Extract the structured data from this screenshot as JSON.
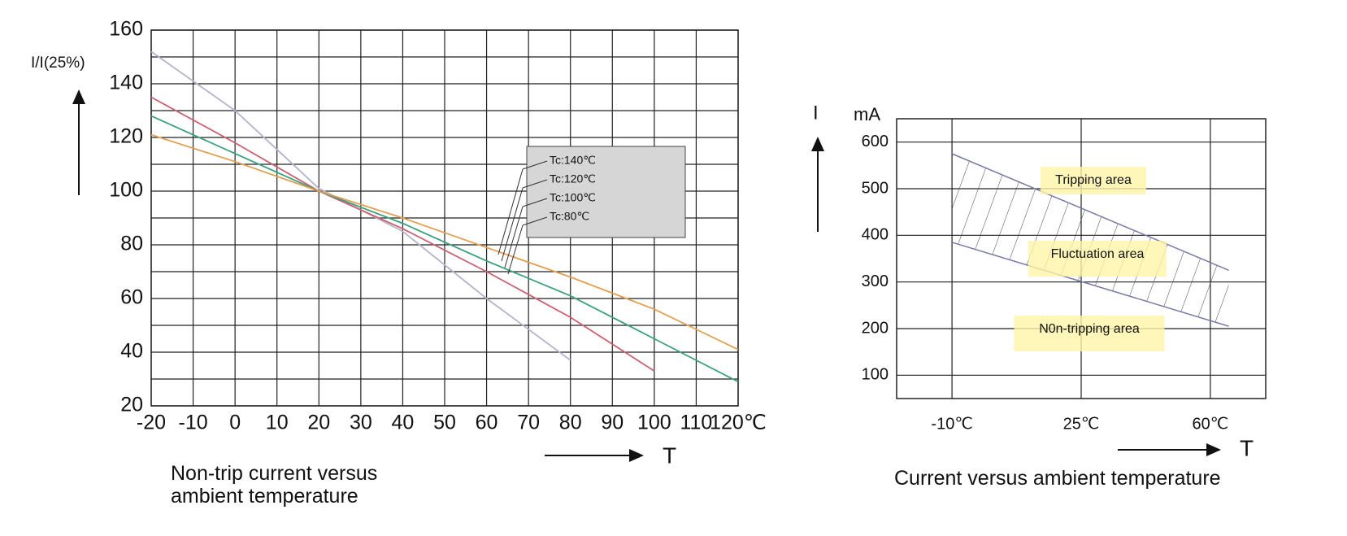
{
  "chart_data": [
    {
      "type": "line",
      "title": "Non-trip current versus ambient temperature",
      "y_label": "I/I(25%)",
      "x_label": "T",
      "xlim": [
        -20,
        120
      ],
      "ylim": [
        20,
        160
      ],
      "xticks": [
        -20,
        -10,
        0,
        10,
        20,
        30,
        40,
        50,
        60,
        70,
        80,
        90,
        100,
        110,
        {
          "value": 120,
          "label": "120℃"
        }
      ],
      "yticks": [
        20,
        40,
        60,
        80,
        100,
        120,
        140,
        160
      ],
      "y_minor_grid": [
        30,
        50,
        70,
        90,
        110,
        130,
        150
      ],
      "grid": true,
      "series": [
        {
          "name": "Tc:140℃",
          "color": "#b4b4cc",
          "x": [
            -20,
            0,
            20,
            40,
            60,
            80
          ],
          "values": [
            152,
            130,
            101,
            85,
            60,
            37
          ]
        },
        {
          "name": "Tc:120℃",
          "color": "#cc6070",
          "x": [
            -20,
            0,
            20,
            40,
            60,
            80,
            100
          ],
          "values": [
            135,
            118,
            100,
            86,
            70,
            53,
            33
          ]
        },
        {
          "name": "Tc:100℃",
          "color": "#3aa080",
          "x": [
            -20,
            0,
            20,
            40,
            60,
            80,
            100,
            120
          ],
          "values": [
            128,
            114,
            100,
            88,
            74,
            61,
            45,
            29
          ]
        },
        {
          "name": "Tc:80℃",
          "color": "#e0a050",
          "x": [
            -20,
            0,
            20,
            40,
            60,
            80,
            100,
            120
          ],
          "values": [
            121,
            111,
            100,
            90,
            79,
            68,
            56,
            41
          ]
        }
      ]
    },
    {
      "type": "band",
      "title": "Current versus ambient temperature",
      "y_label": "I",
      "y_unit": "mA",
      "x_label": "T",
      "xlim": [
        -25,
        75
      ],
      "ylim": [
        50,
        650
      ],
      "xticks": [
        {
          "value": -10,
          "label": "-10℃"
        },
        {
          "value": 25,
          "label": "25℃"
        },
        {
          "value": 60,
          "label": "60℃"
        }
      ],
      "yticks": [
        100,
        200,
        300,
        400,
        500,
        600
      ],
      "grid": true,
      "x": [
        -10,
        65
      ],
      "upper": [
        575,
        325
      ],
      "lower": [
        385,
        205
      ],
      "areas": [
        "Tripping area",
        "Fluctuation area",
        "N0n-tripping area"
      ]
    }
  ]
}
